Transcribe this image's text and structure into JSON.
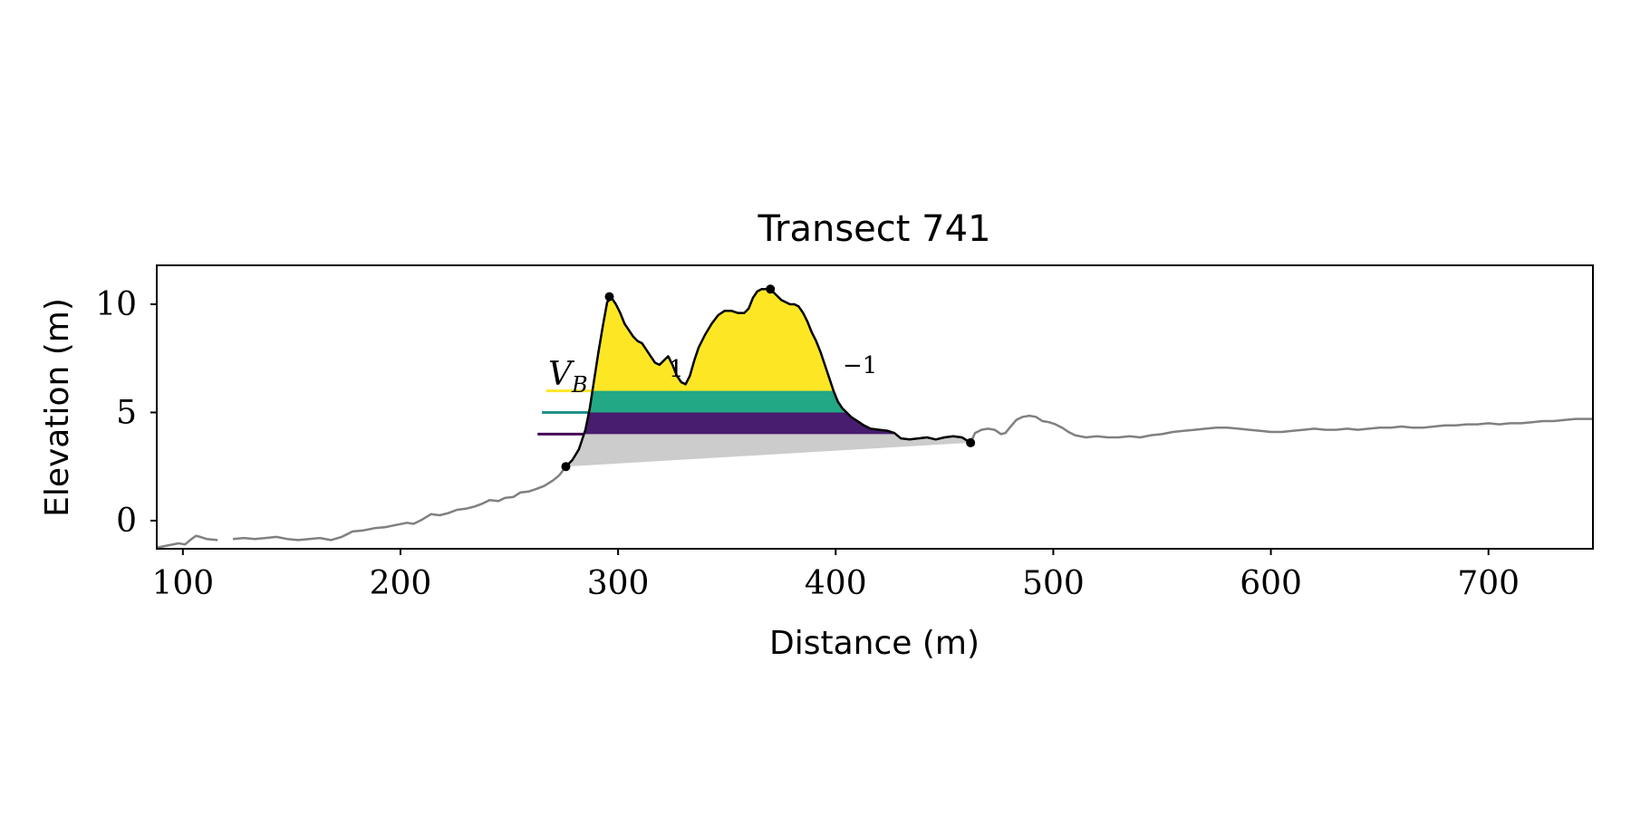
{
  "chart_data": {
    "type": "area",
    "title": "Transect 741",
    "xlabel": "Distance (m)",
    "ylabel": "Elevation (m)",
    "xlim": [
      88,
      748
    ],
    "ylim": [
      -1.3,
      11.8
    ],
    "xticks": [
      100,
      200,
      300,
      400,
      500,
      600,
      700
    ],
    "yticks": [
      0,
      5,
      10
    ],
    "xtick_labels": [
      "100",
      "200",
      "300",
      "400",
      "500",
      "600",
      "700"
    ],
    "ytick_labels": [
      "0",
      "5",
      "10"
    ],
    "grid": false,
    "profile": {
      "color": "#808080",
      "segments": [
        [
          [
            88,
            -1.25
          ],
          [
            93,
            -1.15
          ],
          [
            98,
            -1.05
          ],
          [
            101,
            -1.1
          ],
          [
            104,
            -0.85
          ],
          [
            106,
            -0.7
          ],
          [
            108,
            -0.75
          ],
          [
            111,
            -0.85
          ],
          [
            116,
            -0.9
          ]
        ],
        [
          [
            123,
            -0.85
          ],
          [
            128,
            -0.8
          ],
          [
            133,
            -0.85
          ],
          [
            138,
            -0.8
          ],
          [
            143,
            -0.75
          ],
          [
            148,
            -0.85
          ],
          [
            153,
            -0.9
          ],
          [
            158,
            -0.85
          ],
          [
            163,
            -0.8
          ],
          [
            168,
            -0.9
          ],
          [
            173,
            -0.75
          ],
          [
            178,
            -0.5
          ],
          [
            183,
            -0.45
          ],
          [
            188,
            -0.35
          ],
          [
            193,
            -0.3
          ],
          [
            198,
            -0.2
          ],
          [
            203,
            -0.1
          ],
          [
            206,
            -0.15
          ],
          [
            210,
            0.05
          ],
          [
            214,
            0.3
          ],
          [
            218,
            0.25
          ],
          [
            222,
            0.35
          ],
          [
            226,
            0.5
          ],
          [
            230,
            0.55
          ],
          [
            234,
            0.65
          ],
          [
            238,
            0.8
          ],
          [
            241,
            0.95
          ],
          [
            245,
            0.9
          ],
          [
            248,
            1.05
          ],
          [
            252,
            1.1
          ],
          [
            255,
            1.3
          ],
          [
            259,
            1.35
          ],
          [
            262,
            1.45
          ],
          [
            266,
            1.6
          ],
          [
            270,
            1.85
          ],
          [
            273,
            2.1
          ],
          [
            276,
            2.5
          ]
        ],
        [
          [
            462,
            3.6
          ],
          [
            464,
            4.05
          ],
          [
            467,
            4.2
          ],
          [
            470,
            4.25
          ],
          [
            473,
            4.2
          ],
          [
            476,
            4.0
          ],
          [
            478,
            4.05
          ],
          [
            480,
            4.3
          ],
          [
            483,
            4.65
          ],
          [
            486,
            4.8
          ],
          [
            489,
            4.85
          ],
          [
            492,
            4.8
          ],
          [
            495,
            4.6
          ],
          [
            498,
            4.55
          ],
          [
            501,
            4.45
          ],
          [
            504,
            4.3
          ],
          [
            507,
            4.1
          ],
          [
            510,
            3.95
          ],
          [
            515,
            3.85
          ],
          [
            520,
            3.9
          ],
          [
            525,
            3.85
          ],
          [
            530,
            3.85
          ],
          [
            535,
            3.9
          ],
          [
            540,
            3.85
          ],
          [
            545,
            3.95
          ],
          [
            550,
            4.0
          ],
          [
            555,
            4.1
          ],
          [
            560,
            4.15
          ],
          [
            565,
            4.2
          ],
          [
            570,
            4.25
          ],
          [
            575,
            4.3
          ],
          [
            580,
            4.3
          ],
          [
            585,
            4.25
          ],
          [
            590,
            4.2
          ],
          [
            595,
            4.15
          ],
          [
            600,
            4.1
          ],
          [
            605,
            4.1
          ],
          [
            610,
            4.15
          ],
          [
            615,
            4.2
          ],
          [
            620,
            4.25
          ],
          [
            625,
            4.2
          ],
          [
            630,
            4.2
          ],
          [
            635,
            4.25
          ],
          [
            640,
            4.2
          ],
          [
            645,
            4.25
          ],
          [
            650,
            4.3
          ],
          [
            655,
            4.3
          ],
          [
            660,
            4.35
          ],
          [
            665,
            4.3
          ],
          [
            670,
            4.3
          ],
          [
            675,
            4.35
          ],
          [
            680,
            4.4
          ],
          [
            685,
            4.4
          ],
          [
            690,
            4.45
          ],
          [
            695,
            4.45
          ],
          [
            700,
            4.5
          ],
          [
            705,
            4.45
          ],
          [
            710,
            4.5
          ],
          [
            715,
            4.5
          ],
          [
            720,
            4.55
          ],
          [
            725,
            4.6
          ],
          [
            730,
            4.6
          ],
          [
            735,
            4.65
          ],
          [
            740,
            4.7
          ],
          [
            748,
            4.7
          ]
        ]
      ]
    },
    "dune_profile": {
      "color": "#000000",
      "points": [
        [
          276,
          2.5
        ],
        [
          279,
          2.8
        ],
        [
          282,
          3.3
        ],
        [
          285,
          4.2
        ],
        [
          287,
          5.2
        ],
        [
          289,
          6.5
        ],
        [
          291,
          7.8
        ],
        [
          293,
          9.0
        ],
        [
          295,
          10.1
        ],
        [
          297,
          10.3
        ],
        [
          299,
          10.0
        ],
        [
          301,
          9.6
        ],
        [
          303,
          9.1
        ],
        [
          305,
          8.8
        ],
        [
          307,
          8.5
        ],
        [
          309,
          8.3
        ],
        [
          311,
          8.2
        ],
        [
          313,
          7.9
        ],
        [
          315,
          7.6
        ],
        [
          317,
          7.3
        ],
        [
          319,
          7.2
        ],
        [
          321,
          7.4
        ],
        [
          323,
          7.6
        ],
        [
          325,
          7.2
        ],
        [
          327,
          6.7
        ],
        [
          329,
          6.4
        ],
        [
          331,
          6.3
        ],
        [
          333,
          6.7
        ],
        [
          335,
          7.4
        ],
        [
          337,
          8.0
        ],
        [
          340,
          8.6
        ],
        [
          343,
          9.1
        ],
        [
          346,
          9.5
        ],
        [
          349,
          9.7
        ],
        [
          352,
          9.7
        ],
        [
          355,
          9.6
        ],
        [
          358,
          9.6
        ],
        [
          360,
          9.8
        ],
        [
          362,
          10.3
        ],
        [
          364,
          10.6
        ],
        [
          366,
          10.7
        ],
        [
          369,
          10.7
        ],
        [
          371,
          10.6
        ],
        [
          373,
          10.4
        ],
        [
          375,
          10.2
        ],
        [
          377,
          10.1
        ],
        [
          379,
          10.0
        ],
        [
          381,
          10.0
        ],
        [
          383,
          9.9
        ],
        [
          385,
          9.6
        ],
        [
          387,
          9.2
        ],
        [
          389,
          8.7
        ],
        [
          391,
          8.3
        ],
        [
          393,
          7.8
        ],
        [
          395,
          7.2
        ],
        [
          397,
          6.6
        ],
        [
          399,
          6.0
        ],
        [
          401,
          5.5
        ],
        [
          403,
          5.2
        ],
        [
          405,
          5.0
        ],
        [
          407,
          4.8
        ],
        [
          410,
          4.6
        ],
        [
          413,
          4.4
        ],
        [
          416,
          4.25
        ],
        [
          420,
          4.2
        ],
        [
          424,
          4.15
        ],
        [
          427,
          4.05
        ],
        [
          430,
          3.8
        ],
        [
          434,
          3.75
        ],
        [
          438,
          3.8
        ],
        [
          442,
          3.85
        ],
        [
          446,
          3.75
        ],
        [
          450,
          3.85
        ],
        [
          454,
          3.9
        ],
        [
          458,
          3.85
        ],
        [
          462,
          3.6
        ]
      ],
      "markers": [
        [
          276,
          2.5
        ],
        [
          296,
          10.35
        ],
        [
          370,
          10.7
        ],
        [
          462,
          3.6
        ]
      ]
    },
    "volume_base": {
      "color": "#cccccc",
      "from": [
        276,
        2.5
      ],
      "to": [
        462,
        3.6
      ]
    },
    "elevation_bands": [
      {
        "level": 4.0,
        "color": "#440154",
        "fill": "#481c6e",
        "line_start_x": 263
      },
      {
        "level": 5.0,
        "color": "#21918c",
        "fill": "#22a884",
        "line_start_x": 265
      },
      {
        "level": 6.0,
        "color": "#fde725",
        "fill": "#fde725",
        "line_start_x": 267
      }
    ],
    "annotations": {
      "volume_label": "V_B",
      "volume_label_main": "V",
      "volume_label_sub": "B",
      "mid_digit": "1",
      "exponent": "−1"
    }
  }
}
